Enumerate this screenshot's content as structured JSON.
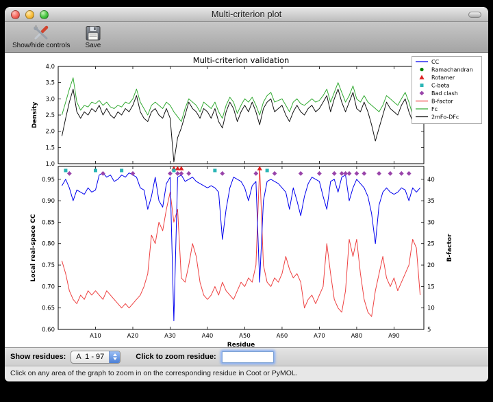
{
  "window": {
    "title": "Multi-criterion plot",
    "toolbar": {
      "show_hide_label": "Show/hide controls",
      "save_label": "Save"
    }
  },
  "controls": {
    "show_residues_label": "Show residues:",
    "residue_range_value": "A  1 - 97",
    "zoom_label": "Click to zoom residue:",
    "zoom_value": ""
  },
  "status_text": "Click on any area of the graph to zoom in on the corresponding residue in Coot or PyMOL.",
  "chart_data": {
    "type": "line",
    "title": "Multi-criterion validation",
    "x": {
      "label": "Residue",
      "range": [
        0,
        98
      ],
      "tick_values": [
        10,
        20,
        30,
        40,
        50,
        60,
        70,
        80,
        90
      ],
      "tick_labels": [
        "A10",
        "A20",
        "A30",
        "A40",
        "A50",
        "A60",
        "A70",
        "A80",
        "A90"
      ]
    },
    "subplots": [
      {
        "ylabel": "Density",
        "ylim": [
          1.0,
          4.0
        ],
        "ytick_values": [
          1.0,
          1.5,
          2.0,
          2.5,
          3.0,
          3.5,
          4.0
        ],
        "ytick_labels": [
          "1.0",
          "1.5",
          "2.0",
          "2.5",
          "3.0",
          "3.5",
          "4.0"
        ],
        "series": [
          {
            "name": "Fc",
            "color": "#33aa33",
            "values": [
              2.5,
              2.9,
              3.3,
              3.65,
              2.9,
              2.65,
              2.8,
              2.75,
              2.9,
              2.85,
              2.95,
              2.8,
              2.9,
              2.75,
              2.7,
              2.8,
              2.75,
              2.9,
              2.85,
              3.0,
              3.3,
              2.9,
              2.7,
              2.5,
              2.8,
              2.9,
              2.8,
              2.7,
              2.9,
              2.8,
              2.6,
              2.45,
              2.3,
              2.7,
              3.0,
              2.9,
              2.8,
              2.6,
              2.9,
              2.8,
              2.7,
              2.9,
              2.6,
              2.4,
              2.8,
              3.05,
              2.9,
              2.55,
              2.8,
              3.0,
              2.9,
              3.05,
              2.8,
              2.5,
              2.9,
              3.1,
              3.2,
              2.9,
              2.95,
              3.0,
              2.8,
              2.6,
              2.9,
              3.0,
              2.85,
              2.8,
              2.9,
              3.0,
              2.9,
              2.95,
              3.1,
              3.3,
              2.9,
              3.2,
              3.5,
              3.2,
              2.9,
              3.1,
              3.4,
              3.0,
              2.9,
              3.1,
              2.9,
              2.8,
              2.7,
              2.6,
              2.8,
              3.1,
              3.0,
              2.9,
              2.8,
              3.0,
              3.2,
              2.9,
              2.5,
              3.3,
              2.8
            ]
          },
          {
            "name": "2mFo-DFc",
            "color": "#111111",
            "values": [
              1.85,
              2.4,
              2.9,
              3.3,
              2.6,
              2.4,
              2.6,
              2.5,
              2.7,
              2.6,
              2.8,
              2.5,
              2.7,
              2.5,
              2.4,
              2.6,
              2.5,
              2.7,
              2.6,
              2.8,
              3.1,
              2.6,
              2.4,
              2.3,
              2.6,
              2.7,
              2.5,
              2.4,
              2.7,
              2.4,
              1.05,
              1.8,
              2.1,
              2.5,
              2.9,
              2.7,
              2.6,
              2.4,
              2.7,
              2.6,
              2.4,
              2.7,
              2.3,
              2.1,
              2.6,
              2.9,
              2.7,
              2.3,
              2.6,
              2.8,
              2.6,
              2.9,
              2.6,
              2.2,
              2.7,
              2.9,
              3.0,
              2.6,
              2.7,
              2.8,
              2.5,
              2.3,
              2.6,
              2.8,
              2.6,
              2.5,
              2.7,
              2.8,
              2.6,
              2.7,
              2.9,
              3.1,
              2.6,
              3.0,
              3.3,
              2.9,
              2.6,
              2.9,
              3.2,
              2.7,
              2.6,
              2.9,
              2.6,
              2.2,
              1.7,
              2.1,
              2.5,
              2.9,
              2.7,
              2.6,
              2.5,
              2.8,
              3.0,
              2.6,
              2.3,
              3.1,
              2.6
            ]
          }
        ]
      },
      {
        "ylabel": "Local real-space CC",
        "ylabel_right": "B-factor",
        "ylim": [
          0.6,
          0.98
        ],
        "ytick_values": [
          0.6,
          0.65,
          0.7,
          0.75,
          0.8,
          0.85,
          0.9,
          0.95
        ],
        "ytick_labels": [
          "0.60",
          "0.65",
          "0.70",
          "0.75",
          "0.80",
          "0.85",
          "0.90",
          "0.95"
        ],
        "ylim_right": [
          5,
          43
        ],
        "ytick_values_right": [
          5,
          10,
          15,
          20,
          25,
          30,
          35,
          40
        ],
        "ytick_labels_right": [
          "5",
          "10",
          "15",
          "20",
          "25",
          "30",
          "35",
          "40"
        ],
        "series": [
          {
            "name": "CC",
            "axis": "left",
            "color": "#0000ee",
            "values": [
              0.935,
              0.95,
              0.93,
              0.9,
              0.925,
              0.92,
              0.915,
              0.93,
              0.92,
              0.925,
              0.96,
              0.965,
              0.955,
              0.96,
              0.945,
              0.95,
              0.96,
              0.955,
              0.965,
              0.96,
              0.955,
              0.93,
              0.925,
              0.88,
              0.91,
              0.955,
              0.9,
              0.885,
              0.94,
              0.955,
              0.62,
              0.955,
              0.96,
              0.945,
              0.95,
              0.955,
              0.945,
              0.94,
              0.935,
              0.93,
              0.935,
              0.93,
              0.92,
              0.81,
              0.88,
              0.93,
              0.955,
              0.95,
              0.945,
              0.93,
              0.9,
              0.935,
              0.945,
              0.71,
              0.9,
              0.945,
              0.95,
              0.945,
              0.94,
              0.93,
              0.92,
              0.88,
              0.93,
              0.9,
              0.865,
              0.91,
              0.94,
              0.955,
              0.95,
              0.945,
              0.91,
              0.88,
              0.945,
              0.95,
              0.92,
              0.955,
              0.96,
              0.9,
              0.93,
              0.95,
              0.94,
              0.93,
              0.91,
              0.87,
              0.8,
              0.89,
              0.92,
              0.93,
              0.92,
              0.915,
              0.92,
              0.93,
              0.925,
              0.9,
              0.93,
              0.92,
              0.93
            ]
          },
          {
            "name": "B-factor",
            "axis": "right",
            "color": "#ee4040",
            "values": [
              21,
              18,
              14,
              12,
              11,
              13,
              12,
              14,
              13,
              14,
              13,
              12,
              14,
              13,
              12,
              11,
              10,
              11,
              10,
              11,
              12,
              13,
              15,
              18,
              27,
              25,
              30,
              28,
              33,
              37,
              30,
              33,
              17,
              16,
              20,
              25,
              22,
              16,
              13,
              12,
              13,
              15,
              13,
              16,
              14,
              13,
              12,
              14,
              16,
              15,
              17,
              16,
              20,
              43,
              20,
              16,
              15,
              17,
              16,
              18,
              22,
              19,
              17,
              18,
              16,
              10,
              12,
              13,
              11,
              13,
              15,
              25,
              18,
              12,
              10,
              9,
              14,
              26,
              22,
              26,
              18,
              12,
              9,
              8,
              14,
              18,
              22,
              17,
              15,
              17,
              14,
              16,
              18,
              20,
              26,
              24,
              13
            ]
          }
        ],
        "markers": [
          {
            "name": "Ramachandran",
            "shape": "circle",
            "color": "#008000",
            "y": 0.976,
            "residues": []
          },
          {
            "name": "Rotamer",
            "shape": "triangle",
            "color": "#dd2222",
            "y": 0.9755,
            "residues": [
              31,
              32,
              33,
              54
            ]
          },
          {
            "name": "C-beta",
            "shape": "square",
            "color": "#2ab5b5",
            "y": 0.9705,
            "residues": [
              2,
              10,
              17,
              31,
              42,
              56
            ]
          },
          {
            "name": "Bad clash",
            "shape": "diamond",
            "color": "#9944aa",
            "y": 0.9635,
            "residues": [
              3,
              12,
              20,
              30,
              32,
              33,
              35,
              44,
              53,
              58,
              65,
              70,
              74,
              76,
              77,
              78,
              80,
              82,
              86,
              89,
              92,
              94
            ]
          }
        ]
      }
    ],
    "legend": [
      {
        "label": "CC",
        "kind": "line",
        "color": "#0000ee"
      },
      {
        "label": "Ramachandran",
        "kind": "marker",
        "shape": "circle",
        "color": "#008000"
      },
      {
        "label": "Rotamer",
        "kind": "marker",
        "shape": "triangle",
        "color": "#dd2222"
      },
      {
        "label": "C-beta",
        "kind": "marker",
        "shape": "square",
        "color": "#2ab5b5"
      },
      {
        "label": "Bad clash",
        "kind": "marker",
        "shape": "diamond",
        "color": "#9944aa"
      },
      {
        "label": "B-factor",
        "kind": "line",
        "color": "#ee4040"
      },
      {
        "label": "Fc",
        "kind": "line",
        "color": "#33aa33"
      },
      {
        "label": "2mFo-DFc",
        "kind": "line",
        "color": "#111111"
      }
    ]
  }
}
